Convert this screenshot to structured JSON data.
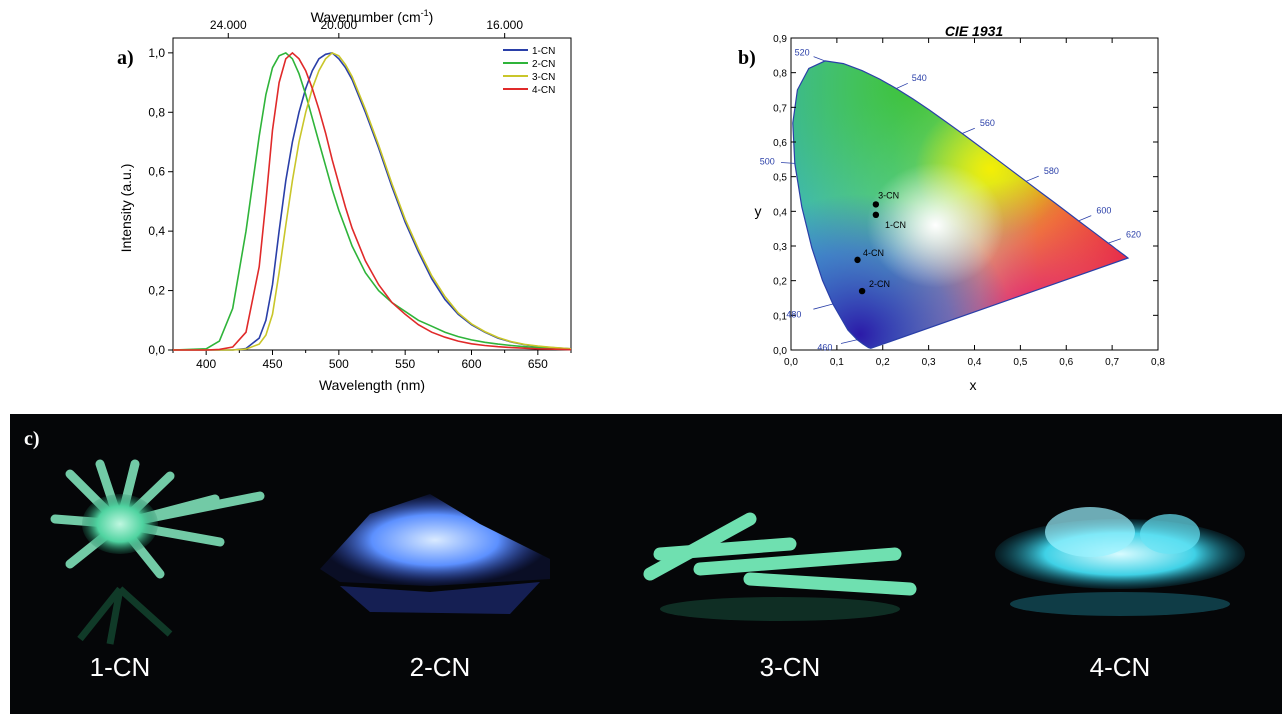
{
  "chart_data": [
    {
      "panel": "a)",
      "type": "line",
      "xlabel": "Wavelength (nm)",
      "ylabel": "Intensity (a.u.)",
      "top_axis_label": "Wavenumber (cm",
      "top_axis_label_sup": "-1",
      "top_axis_label_close": ")",
      "xlim": [
        375,
        675
      ],
      "ylim": [
        0,
        1.05
      ],
      "x_ticks": [
        "400",
        "450",
        "500",
        "550",
        "600",
        "650"
      ],
      "y_ticks": [
        "0,0",
        "0,2",
        "0,4",
        "0,6",
        "0,8",
        "1,0"
      ],
      "top_ticks": [
        "24.000",
        "20.000",
        "16.000"
      ],
      "legend_position": "top-right",
      "x": [
        375,
        400,
        410,
        420,
        430,
        440,
        445,
        450,
        455,
        460,
        465,
        470,
        475,
        480,
        485,
        490,
        495,
        500,
        505,
        510,
        520,
        530,
        540,
        550,
        560,
        570,
        580,
        590,
        600,
        610,
        620,
        630,
        640,
        650,
        660,
        675
      ],
      "series": [
        {
          "name": "1-CN",
          "color": "#2a3fa8",
          "values": [
            0,
            0,
            0,
            0,
            0.005,
            0.04,
            0.1,
            0.22,
            0.4,
            0.57,
            0.7,
            0.8,
            0.88,
            0.94,
            0.98,
            0.995,
            1.0,
            0.98,
            0.95,
            0.91,
            0.8,
            0.68,
            0.55,
            0.43,
            0.33,
            0.24,
            0.17,
            0.12,
            0.085,
            0.06,
            0.04,
            0.027,
            0.018,
            0.012,
            0.008,
            0.004
          ]
        },
        {
          "name": "2-CN",
          "color": "#2fb43a",
          "values": [
            0,
            0.004,
            0.03,
            0.14,
            0.4,
            0.72,
            0.86,
            0.95,
            0.99,
            1.0,
            0.98,
            0.93,
            0.86,
            0.78,
            0.7,
            0.62,
            0.54,
            0.47,
            0.41,
            0.35,
            0.26,
            0.2,
            0.16,
            0.13,
            0.1,
            0.08,
            0.06,
            0.045,
            0.034,
            0.026,
            0.02,
            0.015,
            0.011,
            0.008,
            0.006,
            0.003
          ]
        },
        {
          "name": "3-CN",
          "color": "#c9c62a",
          "values": [
            0,
            0,
            0,
            0,
            0.003,
            0.02,
            0.05,
            0.12,
            0.26,
            0.42,
            0.57,
            0.7,
            0.8,
            0.88,
            0.94,
            0.98,
            1.0,
            0.99,
            0.96,
            0.92,
            0.81,
            0.69,
            0.56,
            0.44,
            0.34,
            0.25,
            0.18,
            0.125,
            0.088,
            0.062,
            0.042,
            0.028,
            0.019,
            0.013,
            0.009,
            0.004
          ]
        },
        {
          "name": "4-CN",
          "color": "#e02a2a",
          "values": [
            0,
            0,
            0.002,
            0.01,
            0.06,
            0.28,
            0.5,
            0.74,
            0.9,
            0.98,
            1.0,
            0.98,
            0.94,
            0.88,
            0.81,
            0.73,
            0.64,
            0.56,
            0.48,
            0.41,
            0.3,
            0.22,
            0.16,
            0.12,
            0.085,
            0.06,
            0.043,
            0.03,
            0.021,
            0.015,
            0.011,
            0.008,
            0.006,
            0.004,
            0.003,
            0.001
          ]
        }
      ]
    },
    {
      "panel": "b)",
      "type": "scatter",
      "title": "CIE 1931",
      "xlabel": "x",
      "ylabel": "y",
      "xlim": [
        0,
        0.8
      ],
      "ylim": [
        0,
        0.9
      ],
      "x_ticks": [
        "0,0",
        "0,1",
        "0,2",
        "0,3",
        "0,4",
        "0,5",
        "0,6",
        "0,7",
        "0,8"
      ],
      "y_ticks": [
        "0,0",
        "0,1",
        "0,2",
        "0,3",
        "0,4",
        "0,5",
        "0,6",
        "0,7",
        "0,8",
        "0,9"
      ],
      "locus": [
        [
          0.1741,
          0.005
        ],
        [
          0.1689,
          0.0069
        ],
        [
          0.1644,
          0.0109
        ],
        [
          0.1566,
          0.0177
        ],
        [
          0.144,
          0.0297
        ],
        [
          0.1241,
          0.0578
        ],
        [
          0.0913,
          0.1327
        ],
        [
          0.0687,
          0.2007
        ],
        [
          0.0454,
          0.295
        ],
        [
          0.0235,
          0.4127
        ],
        [
          0.0082,
          0.5384
        ],
        [
          0.0039,
          0.6548
        ],
        [
          0.0139,
          0.7502
        ],
        [
          0.0389,
          0.812
        ],
        [
          0.0743,
          0.8338
        ],
        [
          0.1142,
          0.8262
        ],
        [
          0.1547,
          0.8059
        ],
        [
          0.1929,
          0.7816
        ],
        [
          0.2296,
          0.7543
        ],
        [
          0.2658,
          0.7243
        ],
        [
          0.3016,
          0.6923
        ],
        [
          0.3373,
          0.6589
        ],
        [
          0.3731,
          0.6245
        ],
        [
          0.4087,
          0.5896
        ],
        [
          0.4441,
          0.5547
        ],
        [
          0.4788,
          0.5202
        ],
        [
          0.5125,
          0.4866
        ],
        [
          0.5448,
          0.4544
        ],
        [
          0.5752,
          0.4242
        ],
        [
          0.6029,
          0.3965
        ],
        [
          0.627,
          0.3725
        ],
        [
          0.6482,
          0.3514
        ],
        [
          0.6658,
          0.334
        ],
        [
          0.6801,
          0.3197
        ],
        [
          0.6915,
          0.3083
        ],
        [
          0.7006,
          0.2993
        ],
        [
          0.7079,
          0.292
        ],
        [
          0.714,
          0.2859
        ],
        [
          0.719,
          0.2809
        ],
        [
          0.723,
          0.277
        ],
        [
          0.726,
          0.274
        ],
        [
          0.7347,
          0.2653
        ]
      ],
      "wavelength_labels": [
        {
          "label": "460",
          "x": 0.144,
          "y": 0.0297,
          "dx": -0.07,
          "dy": -0.022
        },
        {
          "label": "480",
          "x": 0.0913,
          "y": 0.1327,
          "dx": -0.085,
          "dy": -0.03
        },
        {
          "label": "500",
          "x": 0.0082,
          "y": 0.5384,
          "dx": -0.06,
          "dy": 0.005
        },
        {
          "label": "520",
          "x": 0.0743,
          "y": 0.8338,
          "dx": -0.05,
          "dy": 0.025
        },
        {
          "label": "540",
          "x": 0.2296,
          "y": 0.7543,
          "dx": 0.05,
          "dy": 0.03
        },
        {
          "label": "560",
          "x": 0.3731,
          "y": 0.6245,
          "dx": 0.055,
          "dy": 0.03
        },
        {
          "label": "580",
          "x": 0.5125,
          "y": 0.4866,
          "dx": 0.055,
          "dy": 0.03
        },
        {
          "label": "600",
          "x": 0.627,
          "y": 0.3725,
          "dx": 0.055,
          "dy": 0.03
        },
        {
          "label": "620",
          "x": 0.6915,
          "y": 0.3083,
          "dx": 0.055,
          "dy": 0.025
        }
      ],
      "points": [
        {
          "name": "3-CN",
          "x": 0.185,
          "y": 0.42,
          "label_dx": 0.005,
          "label_dy": 0.025
        },
        {
          "name": "1-CN",
          "x": 0.185,
          "y": 0.39,
          "label_dx": 0.02,
          "label_dy": -0.03
        },
        {
          "name": "4-CN",
          "x": 0.145,
          "y": 0.26,
          "label_dx": 0.012,
          "label_dy": 0.02
        },
        {
          "name": "2-CN",
          "x": 0.155,
          "y": 0.17,
          "label_dx": 0.015,
          "label_dy": 0.02
        }
      ]
    }
  ],
  "panel_c": {
    "letter": "c)",
    "labels": [
      "1-CN",
      "2-CN",
      "3-CN",
      "4-CN"
    ]
  }
}
